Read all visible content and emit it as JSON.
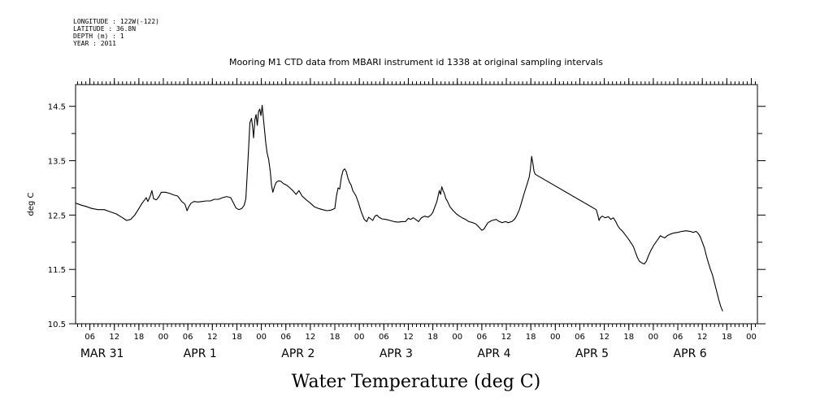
{
  "metadata": [
    {
      "label": "LONGITUDE",
      "value": "122W(-122)"
    },
    {
      "label": "LATITUDE",
      "value": "36.8N"
    },
    {
      "label": "DEPTH (m)",
      "value": "1"
    },
    {
      "label": "YEAR",
      "value": "2011"
    }
  ],
  "chart_data": {
    "type": "line",
    "title": "Mooring M1 CTD data from MBARI instrument id 1338 at original sampling intervals",
    "xlabel": "Water Temperature (deg C)",
    "ylabel": "deg C",
    "x_unit": "hours from 2011-03-31 00:00",
    "xlim": [
      2.5,
      169.5
    ],
    "ylim": [
      10.5,
      14.9
    ],
    "yticks_major": [
      10.5,
      11.5,
      12.5,
      13.5,
      14.5
    ],
    "yticks_minor": [
      11.0,
      12.0,
      13.0,
      14.0
    ],
    "hour_ticks": [
      {
        "x": 6,
        "label": "06"
      },
      {
        "x": 12,
        "label": "12"
      },
      {
        "x": 18,
        "label": "18"
      },
      {
        "x": 24,
        "label": "00"
      },
      {
        "x": 30,
        "label": "06"
      },
      {
        "x": 36,
        "label": "12"
      },
      {
        "x": 42,
        "label": "18"
      },
      {
        "x": 48,
        "label": "00"
      },
      {
        "x": 54,
        "label": "06"
      },
      {
        "x": 60,
        "label": "12"
      },
      {
        "x": 66,
        "label": "18"
      },
      {
        "x": 72,
        "label": "00"
      },
      {
        "x": 78,
        "label": "06"
      },
      {
        "x": 84,
        "label": "12"
      },
      {
        "x": 90,
        "label": "18"
      },
      {
        "x": 96,
        "label": "00"
      },
      {
        "x": 102,
        "label": "06"
      },
      {
        "x": 108,
        "label": "12"
      },
      {
        "x": 114,
        "label": "18"
      },
      {
        "x": 120,
        "label": "00"
      },
      {
        "x": 126,
        "label": "06"
      },
      {
        "x": 132,
        "label": "12"
      },
      {
        "x": 138,
        "label": "18"
      },
      {
        "x": 144,
        "label": "00"
      },
      {
        "x": 150,
        "label": "06"
      },
      {
        "x": 156,
        "label": "12"
      },
      {
        "x": 162,
        "label": "18"
      },
      {
        "x": 168,
        "label": "00"
      }
    ],
    "day_labels": [
      {
        "x": 9,
        "label": "MAR 31"
      },
      {
        "x": 33,
        "label": "APR  1"
      },
      {
        "x": 57,
        "label": "APR  2"
      },
      {
        "x": 81,
        "label": "APR  3"
      },
      {
        "x": 105,
        "label": "APR  4"
      },
      {
        "x": 129,
        "label": "APR  5"
      },
      {
        "x": 153,
        "label": "APR  6"
      }
    ],
    "series": [
      {
        "points": [
          [
            2.5,
            12.72
          ],
          [
            4.0,
            12.68
          ],
          [
            5.0,
            12.66
          ],
          [
            6.5,
            12.62
          ],
          [
            8.0,
            12.6
          ],
          [
            9.5,
            12.6
          ],
          [
            11.0,
            12.56
          ],
          [
            12.5,
            12.52
          ],
          [
            14.0,
            12.45
          ],
          [
            15.0,
            12.4
          ],
          [
            16.0,
            12.42
          ],
          [
            17.0,
            12.5
          ],
          [
            18.0,
            12.62
          ],
          [
            18.8,
            12.72
          ],
          [
            19.4,
            12.78
          ],
          [
            19.8,
            12.82
          ],
          [
            20.2,
            12.75
          ],
          [
            20.8,
            12.85
          ],
          [
            21.2,
            12.95
          ],
          [
            21.6,
            12.8
          ],
          [
            22.3,
            12.78
          ],
          [
            23.0,
            12.85
          ],
          [
            23.5,
            12.92
          ],
          [
            24.5,
            12.92
          ],
          [
            25.5,
            12.9
          ],
          [
            26.5,
            12.87
          ],
          [
            27.5,
            12.85
          ],
          [
            28.5,
            12.75
          ],
          [
            29.3,
            12.7
          ],
          [
            29.8,
            12.58
          ],
          [
            30.2,
            12.65
          ],
          [
            30.8,
            12.72
          ],
          [
            31.5,
            12.75
          ],
          [
            32.5,
            12.74
          ],
          [
            33.5,
            12.75
          ],
          [
            34.5,
            12.76
          ],
          [
            35.5,
            12.76
          ],
          [
            36.5,
            12.79
          ],
          [
            37.5,
            12.79
          ],
          [
            38.5,
            12.82
          ],
          [
            39.5,
            12.84
          ],
          [
            40.5,
            12.82
          ],
          [
            41.2,
            12.72
          ],
          [
            41.8,
            12.63
          ],
          [
            42.5,
            12.6
          ],
          [
            43.2,
            12.62
          ],
          [
            43.8,
            12.68
          ],
          [
            44.2,
            12.8
          ],
          [
            44.5,
            13.2
          ],
          [
            44.9,
            13.75
          ],
          [
            45.2,
            14.2
          ],
          [
            45.6,
            14.28
          ],
          [
            45.9,
            14.1
          ],
          [
            46.1,
            13.92
          ],
          [
            46.4,
            14.25
          ],
          [
            46.7,
            14.35
          ],
          [
            47.0,
            14.15
          ],
          [
            47.3,
            14.4
          ],
          [
            47.6,
            14.45
          ],
          [
            47.9,
            14.33
          ],
          [
            48.2,
            14.52
          ],
          [
            48.5,
            14.28
          ],
          [
            48.8,
            14.05
          ],
          [
            49.1,
            13.82
          ],
          [
            49.4,
            13.65
          ],
          [
            49.8,
            13.52
          ],
          [
            50.2,
            13.3
          ],
          [
            50.5,
            13.05
          ],
          [
            50.8,
            12.92
          ],
          [
            51.2,
            13.02
          ],
          [
            51.6,
            13.1
          ],
          [
            52.2,
            13.13
          ],
          [
            52.8,
            13.12
          ],
          [
            53.4,
            13.08
          ],
          [
            54.2,
            13.05
          ],
          [
            55.0,
            13.0
          ],
          [
            55.7,
            12.95
          ],
          [
            56.5,
            12.88
          ],
          [
            57.2,
            12.95
          ],
          [
            58.0,
            12.85
          ],
          [
            59.0,
            12.78
          ],
          [
            60.0,
            12.72
          ],
          [
            61.0,
            12.65
          ],
          [
            62.0,
            12.62
          ],
          [
            63.0,
            12.6
          ],
          [
            64.0,
            12.58
          ],
          [
            65.0,
            12.59
          ],
          [
            66.0,
            12.62
          ],
          [
            66.4,
            12.85
          ],
          [
            66.8,
            13.0
          ],
          [
            67.2,
            12.98
          ],
          [
            67.6,
            13.2
          ],
          [
            68.0,
            13.32
          ],
          [
            68.4,
            13.35
          ],
          [
            68.8,
            13.3
          ],
          [
            69.2,
            13.18
          ],
          [
            69.6,
            13.1
          ],
          [
            70.0,
            13.05
          ],
          [
            70.4,
            12.95
          ],
          [
            70.8,
            12.9
          ],
          [
            71.2,
            12.85
          ],
          [
            71.8,
            12.72
          ],
          [
            72.5,
            12.55
          ],
          [
            73.2,
            12.42
          ],
          [
            73.8,
            12.38
          ],
          [
            74.3,
            12.46
          ],
          [
            74.8,
            12.43
          ],
          [
            75.3,
            12.4
          ],
          [
            75.8,
            12.48
          ],
          [
            76.3,
            12.5
          ],
          [
            76.8,
            12.46
          ],
          [
            77.5,
            12.43
          ],
          [
            78.5,
            12.42
          ],
          [
            79.5,
            12.4
          ],
          [
            80.5,
            12.38
          ],
          [
            81.5,
            12.37
          ],
          [
            82.5,
            12.38
          ],
          [
            83.3,
            12.38
          ],
          [
            84.0,
            12.44
          ],
          [
            84.6,
            12.42
          ],
          [
            85.2,
            12.45
          ],
          [
            85.8,
            12.42
          ],
          [
            86.5,
            12.38
          ],
          [
            87.2,
            12.45
          ],
          [
            88.0,
            12.48
          ],
          [
            88.8,
            12.46
          ],
          [
            89.5,
            12.5
          ],
          [
            90.0,
            12.55
          ],
          [
            90.5,
            12.65
          ],
          [
            91.0,
            12.75
          ],
          [
            91.3,
            12.85
          ],
          [
            91.6,
            12.95
          ],
          [
            91.9,
            12.88
          ],
          [
            92.2,
            13.02
          ],
          [
            92.5,
            12.95
          ],
          [
            92.8,
            12.9
          ],
          [
            93.2,
            12.8
          ],
          [
            93.6,
            12.75
          ],
          [
            94.2,
            12.65
          ],
          [
            95.0,
            12.58
          ],
          [
            95.8,
            12.52
          ],
          [
            96.5,
            12.48
          ],
          [
            97.2,
            12.45
          ],
          [
            98.0,
            12.42
          ],
          [
            98.8,
            12.38
          ],
          [
            99.8,
            12.36
          ],
          [
            100.5,
            12.34
          ],
          [
            101.0,
            12.3
          ],
          [
            101.5,
            12.26
          ],
          [
            102.0,
            12.22
          ],
          [
            102.5,
            12.24
          ],
          [
            103.0,
            12.3
          ],
          [
            103.5,
            12.36
          ],
          [
            104.5,
            12.4
          ],
          [
            105.5,
            12.42
          ],
          [
            106.3,
            12.38
          ],
          [
            107.0,
            12.36
          ],
          [
            107.8,
            12.38
          ],
          [
            108.5,
            12.36
          ],
          [
            109.3,
            12.38
          ],
          [
            110.0,
            12.42
          ],
          [
            110.6,
            12.5
          ],
          [
            111.2,
            12.6
          ],
          [
            111.8,
            12.75
          ],
          [
            112.3,
            12.88
          ],
          [
            112.8,
            13.0
          ],
          [
            113.2,
            13.1
          ],
          [
            113.6,
            13.2
          ],
          [
            113.9,
            13.35
          ],
          [
            114.2,
            13.58
          ],
          [
            114.5,
            13.45
          ],
          [
            114.8,
            13.3
          ],
          [
            115.1,
            13.25
          ],
          [
            130.0,
            12.6
          ],
          [
            130.4,
            12.5
          ],
          [
            130.7,
            12.4
          ],
          [
            131.0,
            12.45
          ],
          [
            131.5,
            12.48
          ],
          [
            132.2,
            12.45
          ],
          [
            133.0,
            12.47
          ],
          [
            133.6,
            12.42
          ],
          [
            134.2,
            12.45
          ],
          [
            134.8,
            12.38
          ],
          [
            135.3,
            12.3
          ],
          [
            135.8,
            12.25
          ],
          [
            136.5,
            12.2
          ],
          [
            137.0,
            12.15
          ],
          [
            137.5,
            12.1
          ],
          [
            138.0,
            12.05
          ],
          [
            138.6,
            11.98
          ],
          [
            139.1,
            11.92
          ],
          [
            139.6,
            11.82
          ],
          [
            140.1,
            11.72
          ],
          [
            140.6,
            11.65
          ],
          [
            141.2,
            11.62
          ],
          [
            141.8,
            11.6
          ],
          [
            142.3,
            11.65
          ],
          [
            142.8,
            11.75
          ],
          [
            143.4,
            11.85
          ],
          [
            144.0,
            11.93
          ],
          [
            144.6,
            12.0
          ],
          [
            145.2,
            12.06
          ],
          [
            145.7,
            12.12
          ],
          [
            146.2,
            12.1
          ],
          [
            146.8,
            12.08
          ],
          [
            147.4,
            12.12
          ],
          [
            148.2,
            12.15
          ],
          [
            149.0,
            12.17
          ],
          [
            150.0,
            12.18
          ],
          [
            151.0,
            12.2
          ],
          [
            152.0,
            12.21
          ],
          [
            153.0,
            12.2
          ],
          [
            153.8,
            12.18
          ],
          [
            154.5,
            12.2
          ],
          [
            155.0,
            12.16
          ],
          [
            155.5,
            12.1
          ],
          [
            156.0,
            12.0
          ],
          [
            156.5,
            11.9
          ],
          [
            157.0,
            11.75
          ],
          [
            157.5,
            11.62
          ],
          [
            158.0,
            11.5
          ],
          [
            158.5,
            11.4
          ],
          [
            159.0,
            11.25
          ],
          [
            159.5,
            11.1
          ],
          [
            160.0,
            10.95
          ],
          [
            160.5,
            10.82
          ],
          [
            161.0,
            10.73
          ]
        ]
      }
    ]
  }
}
